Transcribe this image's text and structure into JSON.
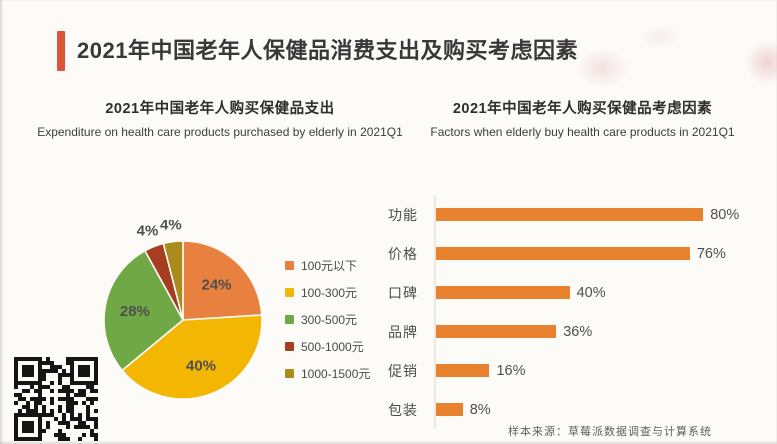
{
  "page": {
    "title": "2021年中国老年人保健品消费支出及购买考虑因素",
    "source_note": "样本来源：草莓派数据调查与计算系统"
  },
  "sections": {
    "left": {
      "title_cn": "2021年中国老年人购买保健品支出",
      "title_en": "Expenditure on health care products purchased by elderly in 2021Q1"
    },
    "right": {
      "title_cn": "2021年中国老年人购买保健品考虑因素",
      "title_en": "Factors when elderly buy health care products in 2021Q1"
    }
  },
  "colors": {
    "accent": "#D8573A",
    "bar": "#E8822F",
    "page_background": "#FCFBF8",
    "text_dark": "#383838",
    "text_gray": "#4f4f4f"
  },
  "chart_data": [
    {
      "type": "pie",
      "title": "2021年中国老年人购买保健品支出",
      "labels": [
        "100元以下",
        "100-300元",
        "300-500元",
        "500-1000元",
        "1000-1500元"
      ],
      "values": [
        24,
        40,
        28,
        4,
        4
      ],
      "value_labels": [
        "24%",
        "40%",
        "28%",
        "4%",
        "4%"
      ],
      "colors": [
        "#E8813F",
        "#F3B703",
        "#6FA845",
        "#A63D1E",
        "#AB8B1C"
      ],
      "legend_position": "right",
      "start_angle_deg": 0,
      "direction": "clockwise"
    },
    {
      "type": "bar",
      "orientation": "horizontal",
      "title": "2021年中国老年人购买保健品考虑因素",
      "categories": [
        "功能",
        "价格",
        "口碑",
        "品牌",
        "促销",
        "包装"
      ],
      "values": [
        80,
        76,
        40,
        36,
        16,
        8
      ],
      "value_labels": [
        "80%",
        "76%",
        "40%",
        "36%",
        "16%",
        "8%"
      ],
      "xlim": [
        0,
        100
      ],
      "bar_color": "#E8822F",
      "grid": false,
      "axis_line_color": "#efe8de"
    }
  ]
}
